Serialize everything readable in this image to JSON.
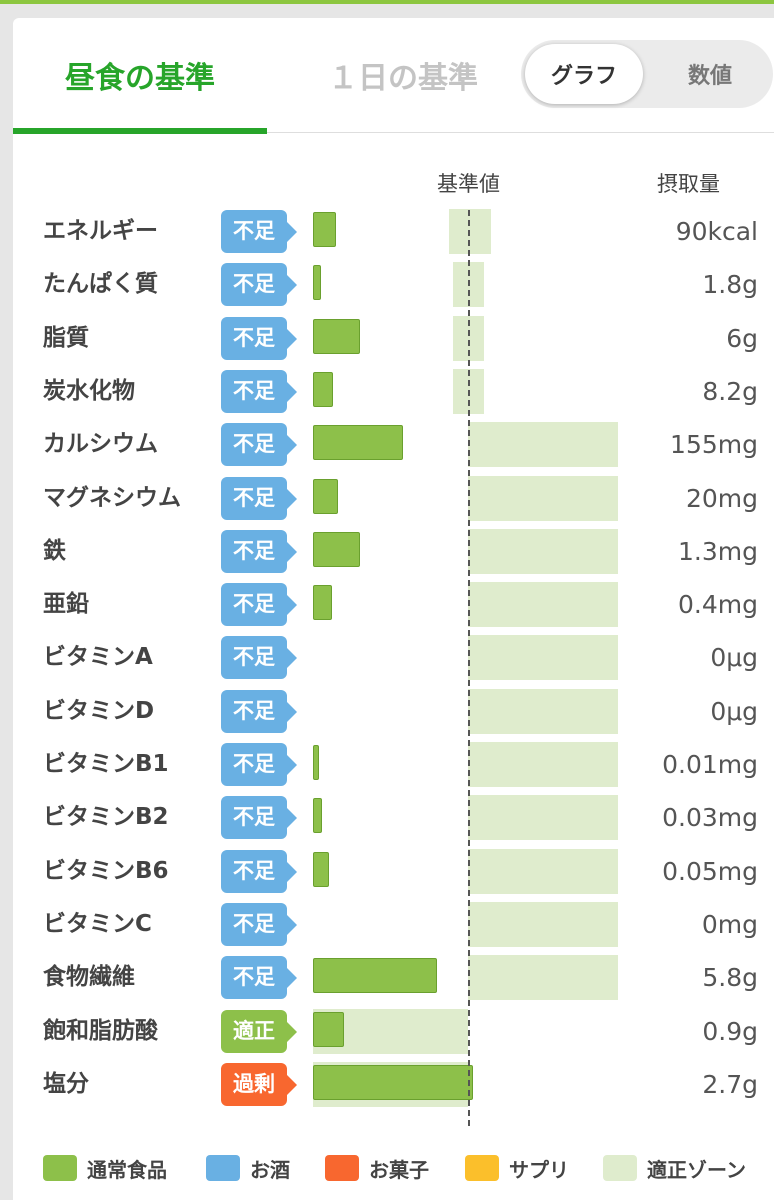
{
  "tabs": {
    "lunch": "昼食の基準",
    "day": "１日の基準"
  },
  "toggle": {
    "graph": "グラフ",
    "values": "数値"
  },
  "headers": {
    "standard": "基準値",
    "intake": "摂取量"
  },
  "colors": {
    "brand_green": "#27a52a",
    "food": "#8dc04a",
    "alcohol": "#69b0e3",
    "snack": "#f8672f",
    "supplement": "#fbbf2b",
    "zone": "#dfeccd"
  },
  "status_colors": {
    "不足": "#69b0e3",
    "適正": "#8dc04a",
    "過剰": "#f8672f"
  },
  "nutrients": [
    {
      "name": "エネルギー",
      "status": "不足",
      "amount": "90kcal",
      "bar_fraction": 0.15,
      "zone": [
        0.88,
        1.15
      ]
    },
    {
      "name": "たんぱく質",
      "status": "不足",
      "amount": "1.8g",
      "bar_fraction": 0.05,
      "zone": [
        0.9,
        1.1
      ]
    },
    {
      "name": "脂質",
      "status": "不足",
      "amount": "6g",
      "bar_fraction": 0.3,
      "zone": [
        0.9,
        1.1
      ]
    },
    {
      "name": "炭水化物",
      "status": "不足",
      "amount": "8.2g",
      "bar_fraction": 0.13,
      "zone": [
        0.9,
        1.1
      ]
    },
    {
      "name": "カルシウム",
      "status": "不足",
      "amount": "155mg",
      "bar_fraction": 0.58,
      "zone": [
        1.0,
        1.97
      ]
    },
    {
      "name": "マグネシウム",
      "status": "不足",
      "amount": "20mg",
      "bar_fraction": 0.16,
      "zone": [
        1.0,
        1.97
      ]
    },
    {
      "name": "鉄",
      "status": "不足",
      "amount": "1.3mg",
      "bar_fraction": 0.3,
      "zone": [
        1.0,
        1.97
      ]
    },
    {
      "name": "亜鉛",
      "status": "不足",
      "amount": "0.4mg",
      "bar_fraction": 0.12,
      "zone": [
        1.0,
        1.97
      ]
    },
    {
      "name": "ビタミンA",
      "status": "不足",
      "amount": "0μg",
      "bar_fraction": 0,
      "zone": [
        1.0,
        1.97
      ]
    },
    {
      "name": "ビタミンD",
      "status": "不足",
      "amount": "0μg",
      "bar_fraction": 0,
      "zone": [
        1.0,
        1.97
      ]
    },
    {
      "name": "ビタミンB1",
      "status": "不足",
      "amount": "0.01mg",
      "bar_fraction": 0.03,
      "zone": [
        1.0,
        1.97
      ]
    },
    {
      "name": "ビタミンB2",
      "status": "不足",
      "amount": "0.03mg",
      "bar_fraction": 0.06,
      "zone": [
        1.0,
        1.97
      ]
    },
    {
      "name": "ビタミンB6",
      "status": "不足",
      "amount": "0.05mg",
      "bar_fraction": 0.1,
      "zone": [
        1.0,
        1.97
      ]
    },
    {
      "name": "ビタミンC",
      "status": "不足",
      "amount": "0mg",
      "bar_fraction": 0,
      "zone": [
        1.0,
        1.97
      ]
    },
    {
      "name": "食物繊維",
      "status": "不足",
      "amount": "5.8g",
      "bar_fraction": 0.8,
      "zone": [
        1.0,
        1.97
      ]
    },
    {
      "name": "飽和脂肪酸",
      "status": "適正",
      "amount": "0.9g",
      "bar_fraction": 0.2,
      "zone": [
        0,
        1.0
      ]
    },
    {
      "name": "塩分",
      "status": "過剰",
      "amount": "2.7g",
      "bar_fraction": 1.03,
      "zone": [
        0,
        1.0
      ]
    }
  ],
  "legend": [
    {
      "label": "通常食品",
      "color": "#8dc04a"
    },
    {
      "label": "お酒",
      "color": "#69b0e3"
    },
    {
      "label": "お菓子",
      "color": "#f8672f"
    },
    {
      "label": "サプリ",
      "color": "#fbbf2b"
    },
    {
      "label": "適正ゾーン",
      "color": "#dfeccd"
    }
  ]
}
